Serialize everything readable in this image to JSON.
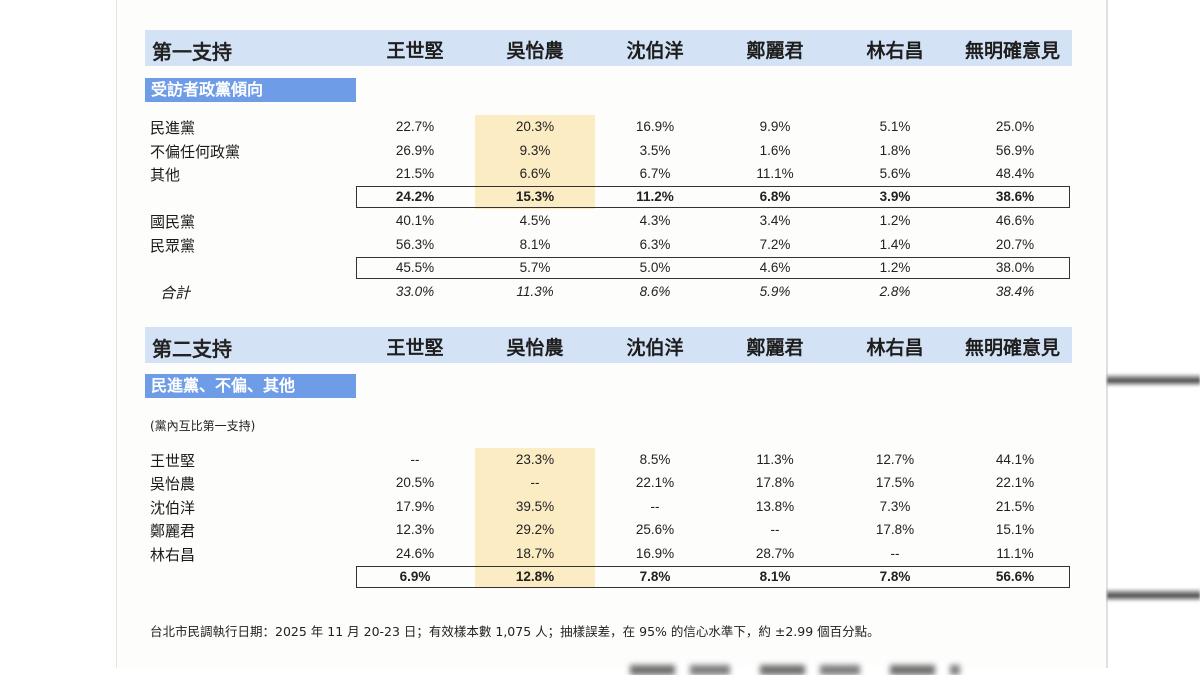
{
  "candidates": [
    "王世堅",
    "吳怡農",
    "沈伯洋",
    "鄭麗君",
    "林右昌",
    "無明確意見"
  ],
  "section1": {
    "title": "第一支持",
    "subheader": "受訪者政黨傾向",
    "rows": [
      {
        "label": "民進黨",
        "values": [
          "22.7%",
          "20.3%",
          "16.9%",
          "9.9%",
          "5.1%",
          "25.0%"
        ]
      },
      {
        "label": "不偏任何政黨",
        "values": [
          "26.9%",
          "9.3%",
          "3.5%",
          "1.6%",
          "1.8%",
          "56.9%"
        ]
      },
      {
        "label": "其他",
        "values": [
          "21.5%",
          "6.6%",
          "6.7%",
          "11.1%",
          "5.6%",
          "48.4%"
        ]
      },
      {
        "label": "",
        "values": [
          "24.2%",
          "15.3%",
          "11.2%",
          "6.8%",
          "3.9%",
          "38.6%"
        ]
      },
      {
        "label": "國民黨",
        "values": [
          "40.1%",
          "4.5%",
          "4.3%",
          "3.4%",
          "1.2%",
          "46.6%"
        ]
      },
      {
        "label": "民眾黨",
        "values": [
          "56.3%",
          "8.1%",
          "6.3%",
          "7.2%",
          "1.4%",
          "20.7%"
        ]
      },
      {
        "label": "",
        "values": [
          "45.5%",
          "5.7%",
          "5.0%",
          "4.6%",
          "1.2%",
          "38.0%"
        ]
      },
      {
        "label": "合計",
        "values": [
          "33.0%",
          "11.3%",
          "8.6%",
          "5.9%",
          "2.8%",
          "38.4%"
        ]
      }
    ]
  },
  "section2": {
    "title": "第二支持",
    "subheader": "民進黨、不偏、其他",
    "note": "(黨內互比第一支持)",
    "rows": [
      {
        "label": "王世堅",
        "values": [
          "--",
          "23.3%",
          "8.5%",
          "11.3%",
          "12.7%",
          "44.1%"
        ]
      },
      {
        "label": "吳怡農",
        "values": [
          "20.5%",
          "--",
          "22.1%",
          "17.8%",
          "17.5%",
          "22.1%"
        ]
      },
      {
        "label": "沈伯洋",
        "values": [
          "17.9%",
          "39.5%",
          "--",
          "13.8%",
          "7.3%",
          "21.5%"
        ]
      },
      {
        "label": "鄭麗君",
        "values": [
          "12.3%",
          "29.2%",
          "25.6%",
          "--",
          "17.8%",
          "15.1%"
        ]
      },
      {
        "label": "林右昌",
        "values": [
          "24.6%",
          "18.7%",
          "16.9%",
          "28.7%",
          "--",
          "11.1%"
        ]
      },
      {
        "label": "",
        "values": [
          "6.9%",
          "12.8%",
          "7.8%",
          "8.1%",
          "7.8%",
          "56.6%"
        ]
      }
    ]
  },
  "footer": "台北市民調執行日期：2025 年 11 月 20-23 日；有效樣本數 1,075 人；抽樣誤差，在 95% 的信心水準下，約 ±2.99 個百分點。",
  "colors": {
    "header_bg": "#d3e2f4",
    "subheader_bg": "#6f9ce6",
    "highlight": "#fbecc4"
  }
}
